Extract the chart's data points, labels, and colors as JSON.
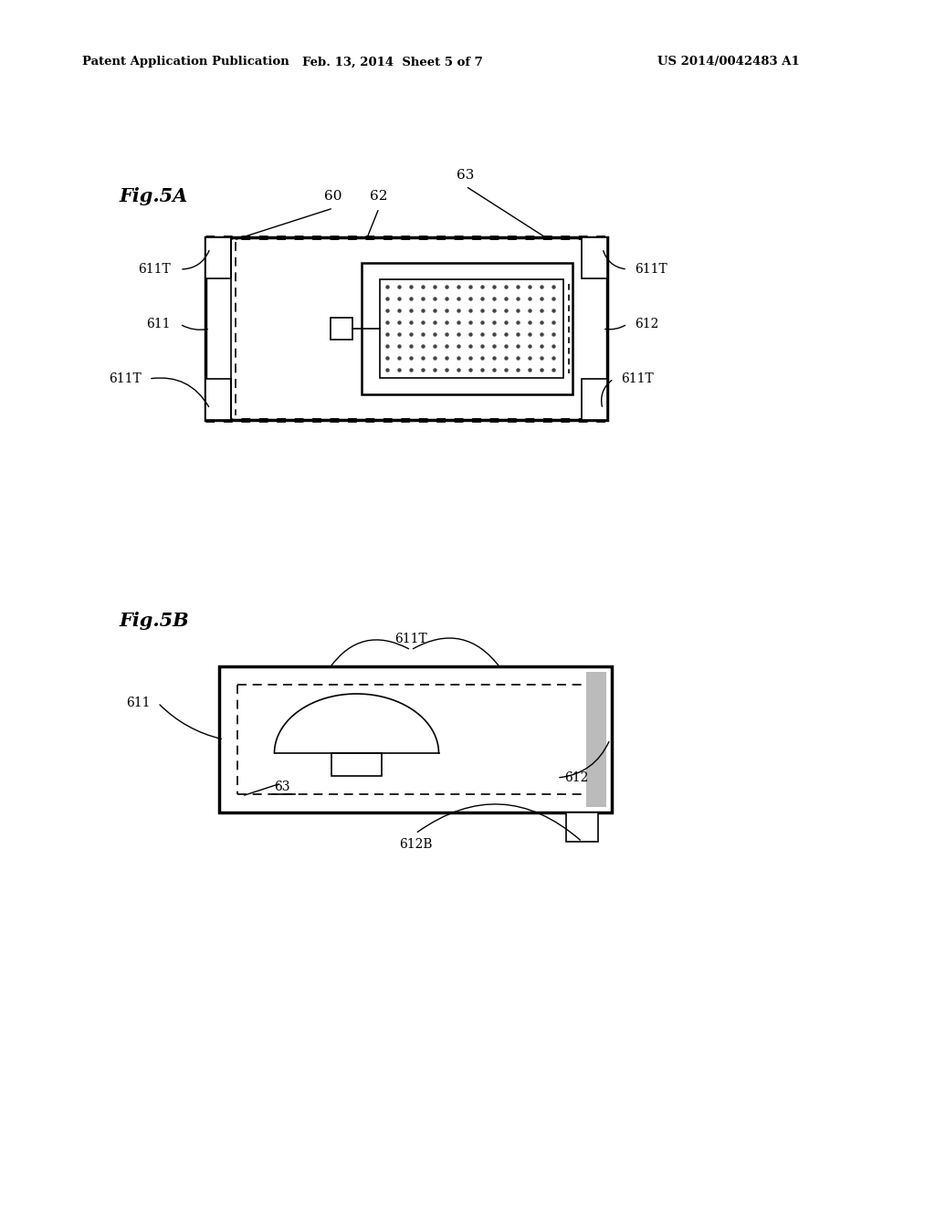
{
  "bg_color": "#ffffff",
  "line_color": "#000000",
  "header_left": "Patent Application Publication",
  "header_mid": "Feb. 13, 2014  Sheet 5 of 7",
  "header_right": "US 2014/0042483 A1",
  "fig5a_label": "Fig.5A",
  "fig5b_label": "Fig.5B"
}
